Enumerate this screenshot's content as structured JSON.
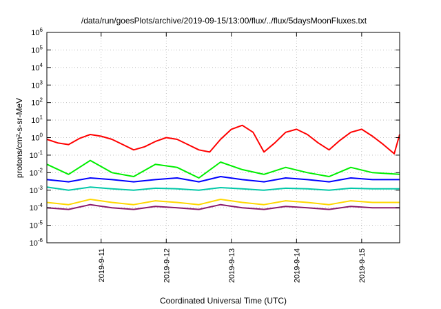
{
  "chart_data": {
    "type": "line",
    "title": "/data/run/goesPlots/archive/2019-09-15/13:00/flux/../flux/5daysMoonFluxes.txt",
    "xlabel": "Coordinated Universal Time (UTC)",
    "ylabel": "protons/cm²-s-sr-MeV",
    "yscale": "log",
    "ylim": [
      1e-06,
      1000000.0
    ],
    "xlim": [
      "2019-09-10 04:00",
      "2019-09-15 14:00"
    ],
    "grid": true,
    "legend": "none",
    "y_ticks": [
      {
        "base": "10",
        "exp": "-6"
      },
      {
        "base": "10",
        "exp": "-5"
      },
      {
        "base": "10",
        "exp": "-4"
      },
      {
        "base": "10",
        "exp": "-3"
      },
      {
        "base": "10",
        "exp": "-2"
      },
      {
        "base": "10",
        "exp": "-1"
      },
      {
        "base": "10",
        "exp": "0"
      },
      {
        "base": "10",
        "exp": "1"
      },
      {
        "base": "10",
        "exp": "2"
      },
      {
        "base": "10",
        "exp": "3"
      },
      {
        "base": "10",
        "exp": "4"
      },
      {
        "base": "10",
        "exp": "5"
      },
      {
        "base": "10",
        "exp": "6"
      }
    ],
    "x_ticks": [
      {
        "label": "2019-9-11",
        "date": "2019-09-11 00:00"
      },
      {
        "label": "2019-9-12",
        "date": "2019-09-12 00:00"
      },
      {
        "label": "2019-9-13",
        "date": "2019-09-13 00:00"
      },
      {
        "label": "2019-9-14",
        "date": "2019-09-14 00:00"
      },
      {
        "label": "2019-9-15",
        "date": "2019-09-15 00:00"
      }
    ],
    "series": [
      {
        "color": "#ff0000",
        "x": [
          "2019-09-10 04:00",
          "2019-09-10 08:00",
          "2019-09-10 12:00",
          "2019-09-10 16:00",
          "2019-09-10 20:00",
          "2019-09-11 00:00",
          "2019-09-11 04:00",
          "2019-09-11 08:00",
          "2019-09-11 12:00",
          "2019-09-11 16:00",
          "2019-09-11 20:00",
          "2019-09-12 00:00",
          "2019-09-12 04:00",
          "2019-09-12 08:00",
          "2019-09-12 12:00",
          "2019-09-12 16:00",
          "2019-09-12 20:00",
          "2019-09-13 00:00",
          "2019-09-13 04:00",
          "2019-09-13 08:00",
          "2019-09-13 12:00",
          "2019-09-13 16:00",
          "2019-09-13 20:00",
          "2019-09-14 00:00",
          "2019-09-14 04:00",
          "2019-09-14 08:00",
          "2019-09-14 12:00",
          "2019-09-14 16:00",
          "2019-09-14 20:00",
          "2019-09-15 00:00",
          "2019-09-15 04:00",
          "2019-09-15 08:00",
          "2019-09-15 12:00",
          "2019-09-15 14:00"
        ],
        "y": [
          0.8,
          0.5,
          0.4,
          0.9,
          1.5,
          1.2,
          0.8,
          0.4,
          0.2,
          0.3,
          0.6,
          1.0,
          0.8,
          0.4,
          0.2,
          0.15,
          0.8,
          3.0,
          5.0,
          2.0,
          0.15,
          0.5,
          2.0,
          3.0,
          1.5,
          0.5,
          0.2,
          0.7,
          2.0,
          3.0,
          1.2,
          0.4,
          0.12,
          1.5
        ]
      },
      {
        "color": "#00ee00",
        "x": [
          "2019-09-10 04:00",
          "2019-09-10 12:00",
          "2019-09-10 20:00",
          "2019-09-11 04:00",
          "2019-09-11 12:00",
          "2019-09-11 20:00",
          "2019-09-12 04:00",
          "2019-09-12 12:00",
          "2019-09-12 20:00",
          "2019-09-13 04:00",
          "2019-09-13 12:00",
          "2019-09-13 20:00",
          "2019-09-14 04:00",
          "2019-09-14 12:00",
          "2019-09-14 20:00",
          "2019-09-15 04:00",
          "2019-09-15 14:00"
        ],
        "y": [
          0.03,
          0.008,
          0.05,
          0.01,
          0.006,
          0.03,
          0.02,
          0.005,
          0.04,
          0.015,
          0.008,
          0.02,
          0.01,
          0.006,
          0.02,
          0.01,
          0.008
        ]
      },
      {
        "color": "#0000ff",
        "x": [
          "2019-09-10 04:00",
          "2019-09-10 12:00",
          "2019-09-10 20:00",
          "2019-09-11 04:00",
          "2019-09-11 12:00",
          "2019-09-11 20:00",
          "2019-09-12 04:00",
          "2019-09-12 12:00",
          "2019-09-12 20:00",
          "2019-09-13 04:00",
          "2019-09-13 12:00",
          "2019-09-13 20:00",
          "2019-09-14 04:00",
          "2019-09-14 12:00",
          "2019-09-14 20:00",
          "2019-09-15 04:00",
          "2019-09-15 14:00"
        ],
        "y": [
          0.004,
          0.003,
          0.005,
          0.004,
          0.003,
          0.004,
          0.005,
          0.003,
          0.006,
          0.004,
          0.003,
          0.005,
          0.004,
          0.003,
          0.005,
          0.004,
          0.004
        ]
      },
      {
        "color": "#00c8a8",
        "x": [
          "2019-09-10 04:00",
          "2019-09-10 12:00",
          "2019-09-10 20:00",
          "2019-09-11 04:00",
          "2019-09-11 12:00",
          "2019-09-11 20:00",
          "2019-09-12 04:00",
          "2019-09-12 12:00",
          "2019-09-12 20:00",
          "2019-09-13 04:00",
          "2019-09-13 12:00",
          "2019-09-13 20:00",
          "2019-09-14 04:00",
          "2019-09-14 12:00",
          "2019-09-14 20:00",
          "2019-09-15 04:00",
          "2019-09-15 14:00"
        ],
        "y": [
          0.0015,
          0.001,
          0.0015,
          0.0012,
          0.001,
          0.0013,
          0.0012,
          0.001,
          0.0014,
          0.0012,
          0.001,
          0.0013,
          0.0012,
          0.001,
          0.0013,
          0.0012,
          0.0012
        ]
      },
      {
        "color": "#ffd700",
        "x": [
          "2019-09-10 04:00",
          "2019-09-10 12:00",
          "2019-09-10 20:00",
          "2019-09-11 04:00",
          "2019-09-11 12:00",
          "2019-09-11 20:00",
          "2019-09-12 04:00",
          "2019-09-12 12:00",
          "2019-09-12 20:00",
          "2019-09-13 04:00",
          "2019-09-13 12:00",
          "2019-09-13 20:00",
          "2019-09-14 04:00",
          "2019-09-14 12:00",
          "2019-09-14 20:00",
          "2019-09-15 04:00",
          "2019-09-15 14:00"
        ],
        "y": [
          0.0002,
          0.00015,
          0.0003,
          0.0002,
          0.00015,
          0.00025,
          0.0002,
          0.00015,
          0.0003,
          0.0002,
          0.00015,
          0.00025,
          0.0002,
          0.00015,
          0.00025,
          0.0002,
          0.0002
        ]
      },
      {
        "color": "#8b1a6b",
        "x": [
          "2019-09-10 04:00",
          "2019-09-10 12:00",
          "2019-09-10 20:00",
          "2019-09-11 04:00",
          "2019-09-11 12:00",
          "2019-09-11 20:00",
          "2019-09-12 04:00",
          "2019-09-12 12:00",
          "2019-09-12 20:00",
          "2019-09-13 04:00",
          "2019-09-13 12:00",
          "2019-09-13 20:00",
          "2019-09-14 04:00",
          "2019-09-14 12:00",
          "2019-09-14 20:00",
          "2019-09-15 04:00",
          "2019-09-15 14:00"
        ],
        "y": [
          0.0001,
          8e-05,
          0.00015,
          0.0001,
          8e-05,
          0.00012,
          0.0001,
          8e-05,
          0.00015,
          0.0001,
          8e-05,
          0.00012,
          0.0001,
          8e-05,
          0.00012,
          0.0001,
          0.0001
        ]
      }
    ]
  }
}
